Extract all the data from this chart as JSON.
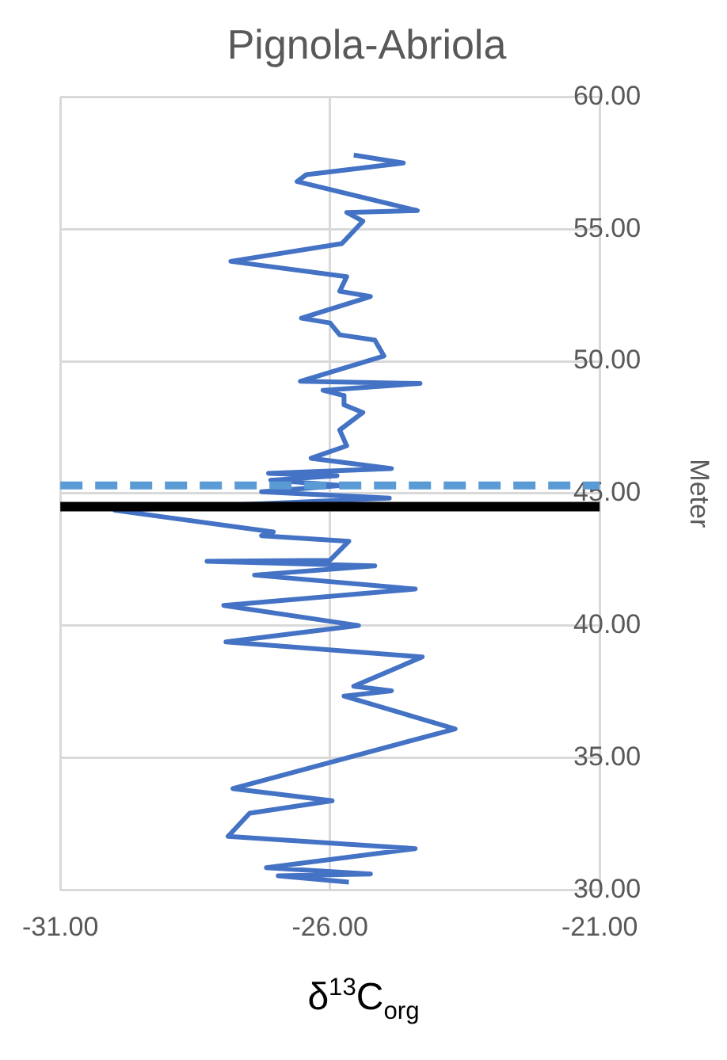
{
  "chart_data": {
    "type": "line",
    "title": "Pignola-Abriola",
    "xlabel": "δ$^{13}$C$_{org}$",
    "ylabel": "Meter",
    "series": [
      {
        "color": "#4472c4",
        "x": [
          -25.56,
          -24.64,
          -26.44,
          -26.61,
          -24.38,
          -25.69,
          -25.39,
          -25.78,
          -27.84,
          -25.69,
          -25.82,
          -25.25,
          -26.53,
          -26.0,
          -25.82,
          -25.17,
          -25.0,
          -26.55,
          -24.33,
          -26.13,
          -25.74,
          -25.74,
          -25.39,
          -25.82,
          -25.69,
          -26.35,
          -24.86,
          -27.14,
          -25.87,
          -27.1,
          -25.78,
          -27.27,
          -24.9,
          -29.99,
          -27.05,
          -27.27,
          -25.65,
          -26.0,
          -28.28,
          -25.17,
          -27.4,
          -24.42,
          -27.97,
          -25.47,
          -27.93,
          -24.29,
          -25.56,
          -24.86,
          -25.74,
          -23.68,
          -27.8,
          -25.96,
          -27.49,
          -27.89,
          -24.42,
          -27.18,
          -25.25,
          -26.96,
          -25.65
        ],
        "values": [
          57.8,
          57.5,
          57.06,
          56.8,
          55.7,
          55.63,
          55.3,
          54.45,
          53.78,
          53.2,
          52.65,
          52.45,
          51.63,
          51.45,
          51.0,
          50.8,
          50.2,
          49.24,
          49.16,
          48.9,
          48.7,
          48.35,
          48.06,
          47.4,
          46.8,
          46.33,
          45.94,
          45.76,
          45.67,
          45.5,
          45.3,
          45.06,
          44.82,
          44.36,
          43.54,
          43.4,
          43.19,
          42.47,
          42.43,
          42.26,
          41.91,
          41.38,
          40.76,
          40.0,
          39.38,
          38.81,
          37.7,
          37.53,
          37.33,
          36.09,
          33.83,
          33.37,
          32.9,
          32.02,
          31.56,
          30.84,
          30.6,
          30.53,
          30.29
        ]
      }
    ],
    "xlim": [
      -31,
      -21
    ],
    "xticks": [
      {
        "value": -31,
        "label": "-31.00"
      },
      {
        "value": -26,
        "label": "-26.00"
      },
      {
        "value": -21,
        "label": "-21.00"
      }
    ],
    "ylim": [
      30,
      60
    ],
    "yticks": [
      {
        "value": 30,
        "label": "30.00"
      },
      {
        "value": 35,
        "label": "35.00"
      },
      {
        "value": 40,
        "label": "40.00"
      },
      {
        "value": 45,
        "label": "45.00"
      },
      {
        "value": 50,
        "label": "50.00"
      },
      {
        "value": 55,
        "label": "55.00"
      },
      {
        "value": 60,
        "label": "60.00"
      }
    ],
    "ref_lines": [
      {
        "axis": "y",
        "value": 45.3,
        "color": "#5b9bd5",
        "line_style": "dashed"
      },
      {
        "axis": "y",
        "value": 44.5,
        "color": "#000000",
        "line_style": "solid"
      }
    ],
    "grid": true,
    "marker": "none",
    "line_style": "solid",
    "legend": false
  }
}
